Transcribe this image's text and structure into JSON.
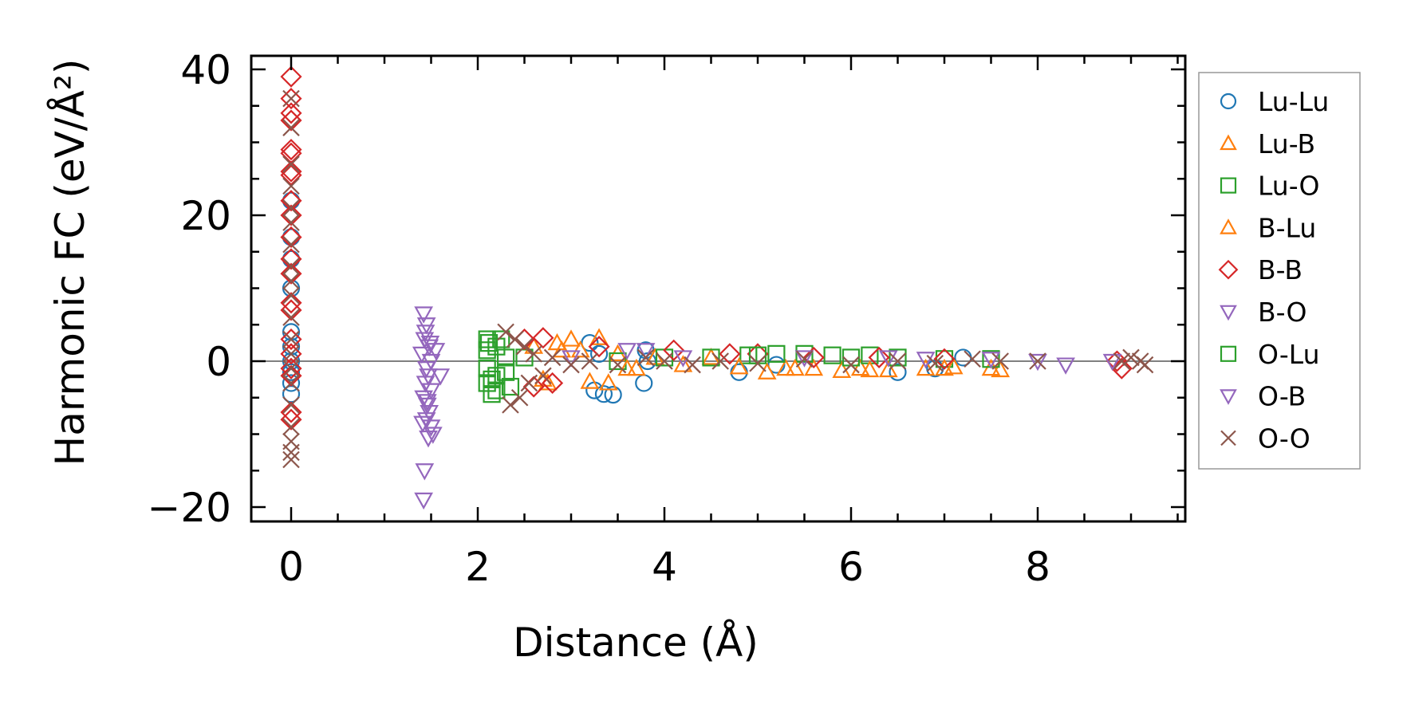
{
  "chart_data": {
    "type": "scatter",
    "title": "",
    "xlabel": "Distance (Å)",
    "ylabel": "Harmonic FC (eV/Å²)",
    "xlim": [
      -0.45,
      9.55
    ],
    "ylim": [
      -22,
      42
    ],
    "xticks": [
      0,
      2,
      4,
      6,
      8
    ],
    "yticks": [
      -20,
      0,
      20,
      40
    ],
    "xtick_labels": [
      "0",
      "2",
      "4",
      "6",
      "8"
    ],
    "ytick_labels": [
      "−20",
      "0",
      "20",
      "40"
    ],
    "zero_line": true,
    "grid": false,
    "legend_position": "right outside",
    "series": [
      {
        "name": "Lu-Lu",
        "marker": "circle",
        "color": "#1f77b4",
        "points": [
          [
            0,
            -4.5
          ],
          [
            0,
            -3
          ],
          [
            0,
            -1.5
          ],
          [
            0,
            0
          ],
          [
            0,
            2
          ],
          [
            0,
            4
          ],
          [
            0,
            10
          ],
          [
            0,
            14
          ],
          [
            0,
            17
          ],
          [
            0,
            22
          ],
          [
            3.2,
            2.5
          ],
          [
            3.25,
            -4
          ],
          [
            3.3,
            1
          ],
          [
            3.35,
            -4.5
          ],
          [
            3.45,
            -4.6
          ],
          [
            3.78,
            -3
          ],
          [
            3.8,
            1.5
          ],
          [
            3.82,
            0
          ],
          [
            4.8,
            -1.5
          ],
          [
            5.2,
            -0.5
          ],
          [
            6.5,
            -1.5
          ],
          [
            6.9,
            -1
          ],
          [
            7.2,
            0.5
          ]
        ]
      },
      {
        "name": "Lu-B",
        "marker": "triangle-up",
        "color": "#ff7f0e",
        "points": [
          [
            2.6,
            2
          ],
          [
            2.75,
            -3
          ],
          [
            2.85,
            2.5
          ],
          [
            3.0,
            3
          ],
          [
            3.1,
            1.5
          ],
          [
            3.3,
            3.2
          ],
          [
            3.4,
            -3
          ],
          [
            3.5,
            1
          ],
          [
            3.7,
            -1
          ],
          [
            3.9,
            0.5
          ],
          [
            4.5,
            0.5
          ],
          [
            5.1,
            -1.5
          ],
          [
            5.3,
            -1
          ],
          [
            5.6,
            -1
          ],
          [
            5.9,
            -1.3
          ],
          [
            6.1,
            -1
          ],
          [
            6.4,
            -1.2
          ],
          [
            6.8,
            -1
          ],
          [
            7.0,
            -1
          ],
          [
            7.5,
            -1
          ],
          [
            7.6,
            -1.2
          ]
        ]
      },
      {
        "name": "Lu-O",
        "marker": "square",
        "color": "#2ca02c",
        "points": [
          [
            2.1,
            3
          ],
          [
            2.1,
            1.5
          ],
          [
            2.1,
            -1
          ],
          [
            2.1,
            -3
          ],
          [
            2.15,
            -4.5
          ],
          [
            2.2,
            2
          ],
          [
            2.2,
            -2
          ],
          [
            2.3,
            0.5
          ],
          [
            2.35,
            -3.5
          ],
          [
            2.5,
            0.5
          ],
          [
            3.5,
            0
          ],
          [
            4.0,
            0.5
          ],
          [
            4.9,
            0.8
          ],
          [
            5.2,
            1
          ],
          [
            5.5,
            1
          ],
          [
            5.8,
            0.8
          ],
          [
            6.2,
            0.8
          ],
          [
            6.5,
            0.5
          ],
          [
            7.0,
            0.3
          ],
          [
            7.5,
            0.3
          ]
        ]
      },
      {
        "name": "B-Lu",
        "marker": "triangle-up",
        "color": "#ff7f0e",
        "points": [
          [
            2.7,
            -2.5
          ],
          [
            2.9,
            1.5
          ],
          [
            3.2,
            -2.8
          ],
          [
            3.6,
            -1
          ],
          [
            4.2,
            -0.5
          ],
          [
            4.8,
            -0.8
          ],
          [
            5.4,
            -1
          ],
          [
            6.2,
            -1.2
          ],
          [
            7.1,
            -0.8
          ]
        ]
      },
      {
        "name": "B-B",
        "marker": "diamond",
        "color": "#d62728",
        "points": [
          [
            0,
            39
          ],
          [
            0,
            36
          ],
          [
            0,
            34
          ],
          [
            0,
            33
          ],
          [
            0,
            29
          ],
          [
            0,
            28.5
          ],
          [
            0,
            26
          ],
          [
            0,
            25.5
          ],
          [
            0,
            22
          ],
          [
            0,
            20
          ],
          [
            0,
            17
          ],
          [
            0,
            14
          ],
          [
            0,
            12
          ],
          [
            0,
            8
          ],
          [
            0,
            7
          ],
          [
            0,
            3
          ],
          [
            0,
            1
          ],
          [
            0,
            -1
          ],
          [
            0,
            -2
          ],
          [
            0,
            -7
          ],
          [
            0,
            -8
          ],
          [
            2.5,
            3
          ],
          [
            2.6,
            -3.5
          ],
          [
            2.7,
            3.2
          ],
          [
            2.8,
            -3
          ],
          [
            3.3,
            2
          ],
          [
            4.1,
            1.5
          ],
          [
            4.7,
            1
          ],
          [
            5.0,
            1
          ],
          [
            5.6,
            0.5
          ],
          [
            6.3,
            0.5
          ],
          [
            7.0,
            0.3
          ],
          [
            8.85,
            0
          ],
          [
            8.9,
            -1
          ]
        ]
      },
      {
        "name": "B-O",
        "marker": "triangle-down",
        "color": "#9467bd",
        "points": [
          [
            1.42,
            6.5
          ],
          [
            1.45,
            5
          ],
          [
            1.43,
            3
          ],
          [
            1.48,
            2
          ],
          [
            1.4,
            1
          ],
          [
            1.5,
            0
          ],
          [
            1.45,
            -1
          ],
          [
            1.47,
            -2
          ],
          [
            1.44,
            -3
          ],
          [
            1.5,
            -4
          ],
          [
            1.42,
            -5
          ],
          [
            1.46,
            -6
          ],
          [
            1.48,
            -7
          ],
          [
            1.45,
            -8
          ],
          [
            1.5,
            -9
          ],
          [
            1.52,
            -10
          ],
          [
            1.47,
            -10.5
          ],
          [
            1.43,
            -15
          ],
          [
            1.42,
            -19
          ],
          [
            1.6,
            -2
          ],
          [
            1.55,
            1.5
          ],
          [
            3.6,
            1.5
          ],
          [
            3.8,
            1.5
          ],
          [
            6.4,
            0.5
          ],
          [
            7.5,
            0.3
          ],
          [
            8.0,
            0
          ],
          [
            8.3,
            -0.5
          ],
          [
            8.8,
            0
          ]
        ]
      },
      {
        "name": "O-Lu",
        "marker": "square",
        "color": "#2ca02c",
        "points": [
          [
            2.12,
            2.5
          ],
          [
            2.15,
            -2.5
          ],
          [
            2.2,
            -4
          ],
          [
            2.25,
            3
          ],
          [
            2.3,
            -1.5
          ],
          [
            4.5,
            0.5
          ],
          [
            5.0,
            0.8
          ],
          [
            6.0,
            0.5
          ]
        ]
      },
      {
        "name": "O-B",
        "marker": "triangle-down",
        "color": "#9467bd",
        "points": [
          [
            1.44,
            4
          ],
          [
            1.46,
            -5.5
          ],
          [
            1.41,
            -8.5
          ],
          [
            1.49,
            2.5
          ],
          [
            3.0,
            0.5
          ],
          [
            4.2,
            0.5
          ],
          [
            5.5,
            0.5
          ],
          [
            6.8,
            0.3
          ]
        ]
      },
      {
        "name": "O-O",
        "marker": "x",
        "color": "#8c564b",
        "points": [
          [
            0,
            36
          ],
          [
            0,
            32
          ],
          [
            0,
            27
          ],
          [
            0,
            24
          ],
          [
            0,
            21
          ],
          [
            0,
            19
          ],
          [
            0,
            16
          ],
          [
            0,
            13
          ],
          [
            0,
            11
          ],
          [
            0,
            9
          ],
          [
            0,
            6
          ],
          [
            0,
            3
          ],
          [
            0,
            1
          ],
          [
            0,
            -1
          ],
          [
            0,
            -3
          ],
          [
            0,
            -6
          ],
          [
            0,
            -9
          ],
          [
            0,
            -11
          ],
          [
            0,
            -12.5
          ],
          [
            0,
            -13.5
          ],
          [
            2.3,
            4
          ],
          [
            2.35,
            -6
          ],
          [
            2.4,
            3
          ],
          [
            2.45,
            -5
          ],
          [
            2.5,
            2
          ],
          [
            2.55,
            -3
          ],
          [
            2.6,
            1
          ],
          [
            2.7,
            -2
          ],
          [
            2.8,
            0.5
          ],
          [
            3.0,
            -0.5
          ],
          [
            3.2,
            0
          ],
          [
            3.5,
            -0.5
          ],
          [
            3.8,
            0.5
          ],
          [
            4.0,
            0
          ],
          [
            4.3,
            -0.5
          ],
          [
            4.6,
            0
          ],
          [
            5.0,
            -0.3
          ],
          [
            5.5,
            0.3
          ],
          [
            6.0,
            -0.5
          ],
          [
            6.5,
            0
          ],
          [
            6.9,
            -0.3
          ],
          [
            7.3,
            0.3
          ],
          [
            7.6,
            0
          ],
          [
            8.0,
            0
          ],
          [
            8.9,
            0
          ],
          [
            9.0,
            0.5
          ],
          [
            9.1,
            0
          ],
          [
            9.15,
            -0.5
          ]
        ]
      }
    ]
  }
}
